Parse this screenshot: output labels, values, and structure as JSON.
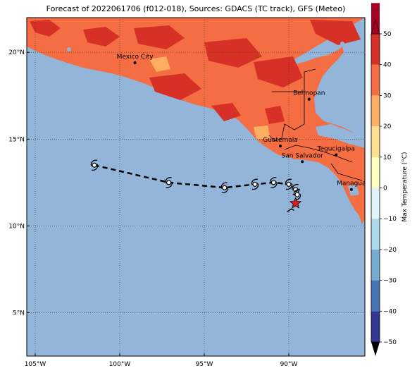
{
  "title": "Forecast of 2022061706 (f012-018), Sources: GDACS (TC track), GFS (Meteo)",
  "map": {
    "lon_range": [
      -105.5,
      -85.5
    ],
    "lat_range": [
      2.5,
      22.0
    ],
    "lon_ticks": [
      {
        "v": -105,
        "label": "105°W"
      },
      {
        "v": -100,
        "label": "100°W"
      },
      {
        "v": -95,
        "label": "95°W"
      },
      {
        "v": -90,
        "label": "90°W"
      }
    ],
    "lat_ticks": [
      {
        "v": 20,
        "label": "20°N"
      },
      {
        "v": 15,
        "label": "15°N"
      },
      {
        "v": 10,
        "label": "10°N"
      },
      {
        "v": 5,
        "label": "5°N"
      }
    ],
    "ocean_color": "#92b5d9",
    "land_color": "#f46d43"
  },
  "cities": [
    {
      "name": "Mexico City",
      "lon": -99.1,
      "lat": 19.4
    },
    {
      "name": "Belmopan",
      "lon": -88.8,
      "lat": 17.3
    },
    {
      "name": "Guatemala",
      "lon": -90.5,
      "lat": 14.6
    },
    {
      "name": "Tegucigalpa",
      "lon": -87.2,
      "lat": 14.1
    },
    {
      "name": "San Salvador",
      "lon": -89.2,
      "lat": 13.7
    },
    {
      "name": "Managua",
      "lon": -86.3,
      "lat": 12.1
    }
  ],
  "track": [
    {
      "lon": -101.5,
      "lat": 13.5
    },
    {
      "lon": -97.1,
      "lat": 12.5
    },
    {
      "lon": -93.8,
      "lat": 12.2
    },
    {
      "lon": -92.0,
      "lat": 12.4
    },
    {
      "lon": -90.9,
      "lat": 12.5
    },
    {
      "lon": -90.0,
      "lat": 12.4
    },
    {
      "lon": -89.6,
      "lat": 12.1
    },
    {
      "lon": -89.5,
      "lat": 11.8
    }
  ],
  "current_position": {
    "lon": -89.6,
    "lat": 11.3
  },
  "colorbar": {
    "label": "Max Temperature (°C)",
    "min": -50,
    "max": 50,
    "ticks": [
      50,
      40,
      30,
      20,
      10,
      0,
      -10,
      -20,
      -30,
      -40,
      -50
    ],
    "colors": [
      "#313695",
      "#4575b4",
      "#74add1",
      "#abd9e9",
      "#e0f3f8",
      "#ffffbf",
      "#fee090",
      "#fdae61",
      "#f46d43",
      "#d73027",
      "#a50026"
    ]
  }
}
